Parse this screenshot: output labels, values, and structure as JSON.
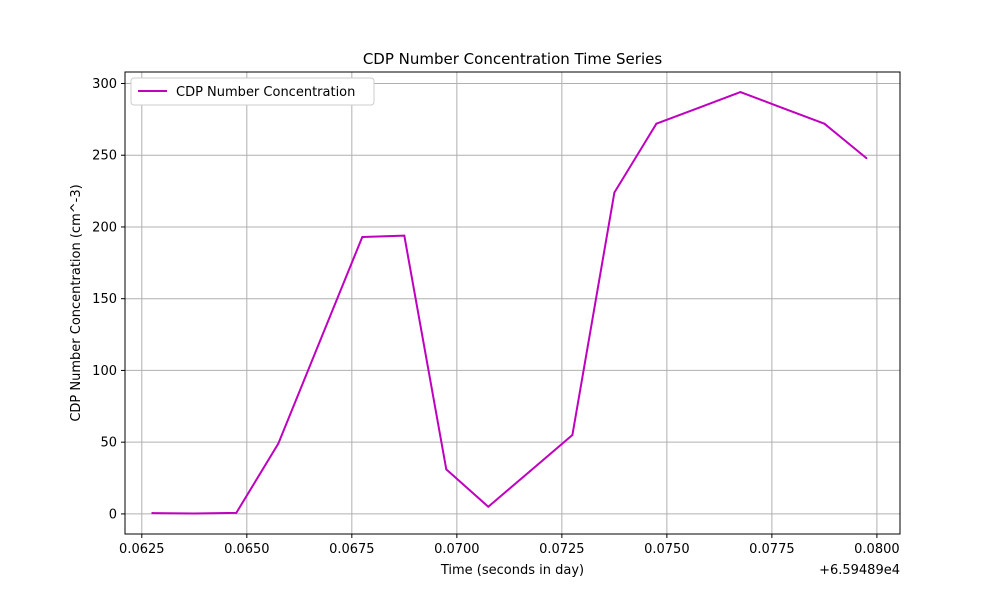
{
  "chart_data": {
    "type": "line",
    "title": "CDP Number Concentration Time Series",
    "xlabel": "Time (seconds in day)",
    "ylabel": "CDP Number Concentration (cm^-3)",
    "x_offset_label": "+6.59489e4",
    "xlim": [
      0.0621,
      0.08055
    ],
    "ylim": [
      -14,
      308
    ],
    "x_ticks": [
      0.0625,
      0.065,
      0.0675,
      0.07,
      0.0725,
      0.075,
      0.0775,
      0.08
    ],
    "x_tick_labels": [
      "0.0625",
      "0.0650",
      "0.0675",
      "0.0700",
      "0.0725",
      "0.0750",
      "0.0775",
      "0.0800"
    ],
    "y_ticks": [
      0,
      50,
      100,
      150,
      200,
      250,
      300
    ],
    "y_tick_labels": [
      "0",
      "50",
      "100",
      "150",
      "200",
      "250",
      "300"
    ],
    "grid": true,
    "legend_position": "top-left",
    "series": [
      {
        "name": "CDP Number Concentration",
        "color": "#bf00bf",
        "x": [
          0.06275,
          0.06375,
          0.06475,
          0.06575,
          0.06675,
          0.06775,
          0.06875,
          0.06975,
          0.07075,
          0.07175,
          0.07275,
          0.07375,
          0.07475,
          0.07575,
          0.07675,
          0.07775,
          0.07875,
          0.07975
        ],
        "y": [
          0.6,
          0.3,
          0.7,
          49,
          121,
          193,
          194,
          31,
          5,
          30,
          55,
          224,
          272,
          283,
          294,
          283,
          272,
          248
        ]
      }
    ]
  }
}
